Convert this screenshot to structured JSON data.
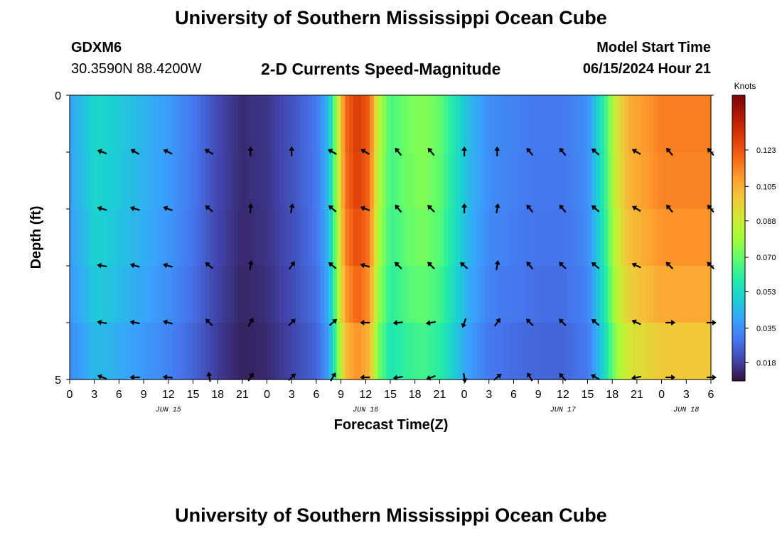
{
  "header": {
    "title": "University of Southern Mississippi Ocean Cube",
    "station": "GDXM6",
    "coords": "30.3590N  88.4200W",
    "subtitle": "2-D Currents Speed-Magnitude",
    "model_start_label": "Model Start Time",
    "model_start_value": "06/15/2024 Hour 21"
  },
  "footer": {
    "title": "University of Southern Mississippi Ocean Cube"
  },
  "colors": {
    "colormap": [
      "#30123b",
      "#4145ab",
      "#4675ed",
      "#39a2fc",
      "#1bcfd4",
      "#24eca6",
      "#61fc6c",
      "#a4fc3b",
      "#d1e834",
      "#f3c63a",
      "#fe9b2d",
      "#f36315",
      "#d93806",
      "#b11901",
      "#7a0402"
    ]
  },
  "chart_data": {
    "type": "heatmap",
    "title": "2-D Currents Speed-Magnitude",
    "xlabel": "Forecast Time(Z)",
    "ylabel": "Depth (ft)",
    "x_range": [
      0,
      78
    ],
    "y_range": [
      0,
      5
    ],
    "x_ticks": [
      0,
      3,
      6,
      9,
      12,
      15,
      18,
      21,
      24,
      27,
      30,
      33,
      36,
      39,
      42,
      45,
      48,
      51,
      54,
      57,
      60,
      63,
      66,
      69,
      72,
      75,
      78
    ],
    "x_tick_labels": [
      "0",
      "3",
      "6",
      "9",
      "12",
      "15",
      "18",
      "21",
      "0",
      "3",
      "6",
      "9",
      "12",
      "15",
      "18",
      "21",
      "0",
      "3",
      "6",
      "9",
      "12",
      "15",
      "18",
      "21",
      "0",
      "3",
      "6"
    ],
    "y_tick_labels": [
      "0",
      "5"
    ],
    "date_labels": [
      {
        "x": 12,
        "label": "JUN 15"
      },
      {
        "x": 36,
        "label": "JUN 16"
      },
      {
        "x": 60,
        "label": "JUN 17"
      },
      {
        "x": 75,
        "label": "JUN 18"
      }
    ],
    "colorbar": {
      "label": "Knots",
      "min": 0.009,
      "max": 0.15,
      "ticks": [
        0.018,
        0.035,
        0.053,
        0.07,
        0.088,
        0.105,
        0.123
      ],
      "tick_labels": [
        "0.018",
        "0.035",
        "0.053",
        "0.070",
        "0.088",
        "0.105",
        "0.123"
      ]
    },
    "speed_profile": [
      {
        "x": 0,
        "v": 0.04
      },
      {
        "x": 1.5,
        "v": 0.045
      },
      {
        "x": 3,
        "v": 0.052
      },
      {
        "x": 5,
        "v": 0.05
      },
      {
        "x": 8,
        "v": 0.045
      },
      {
        "x": 12,
        "v": 0.038
      },
      {
        "x": 15,
        "v": 0.03
      },
      {
        "x": 18,
        "v": 0.02
      },
      {
        "x": 21,
        "v": 0.014
      },
      {
        "x": 24,
        "v": 0.016
      },
      {
        "x": 27,
        "v": 0.022
      },
      {
        "x": 30,
        "v": 0.03
      },
      {
        "x": 31.5,
        "v": 0.045
      },
      {
        "x": 32.5,
        "v": 0.08
      },
      {
        "x": 33.5,
        "v": 0.118
      },
      {
        "x": 35,
        "v": 0.13
      },
      {
        "x": 36.5,
        "v": 0.12
      },
      {
        "x": 37.5,
        "v": 0.085
      },
      {
        "x": 39,
        "v": 0.065
      },
      {
        "x": 41,
        "v": 0.072
      },
      {
        "x": 43,
        "v": 0.075
      },
      {
        "x": 45,
        "v": 0.07
      },
      {
        "x": 47,
        "v": 0.055
      },
      {
        "x": 48.5,
        "v": 0.045
      },
      {
        "x": 51,
        "v": 0.035
      },
      {
        "x": 54,
        "v": 0.032
      },
      {
        "x": 57,
        "v": 0.03
      },
      {
        "x": 60,
        "v": 0.03
      },
      {
        "x": 63,
        "v": 0.035
      },
      {
        "x": 65,
        "v": 0.06
      },
      {
        "x": 66.5,
        "v": 0.09
      },
      {
        "x": 68,
        "v": 0.105
      },
      {
        "x": 72,
        "v": 0.115
      },
      {
        "x": 76,
        "v": 0.115
      },
      {
        "x": 78,
        "v": 0.115
      }
    ],
    "depth_factor": [
      1.0,
      1.0,
      0.98,
      0.95,
      0.9,
      0.82
    ],
    "vector_rows": [
      0.2,
      0.4,
      0.6,
      0.8,
      1.0
    ],
    "vector_times": [
      4,
      8,
      12,
      17,
      22,
      27,
      32,
      36,
      40,
      44,
      48,
      52,
      56,
      60,
      64,
      69,
      73,
      78
    ],
    "vector_angles_deg": [
      [
        160,
        150,
        155,
        150,
        90,
        90,
        150,
        150,
        130,
        130,
        90,
        90,
        130,
        130,
        140,
        150,
        130,
        130
      ],
      [
        165,
        165,
        160,
        140,
        85,
        80,
        140,
        160,
        130,
        135,
        90,
        80,
        130,
        130,
        140,
        150,
        130,
        130
      ],
      [
        170,
        165,
        165,
        140,
        80,
        55,
        140,
        165,
        135,
        135,
        140,
        80,
        130,
        135,
        140,
        155,
        135,
        135
      ],
      [
        170,
        170,
        165,
        135,
        60,
        45,
        40,
        180,
        185,
        190,
        250,
        55,
        135,
        135,
        140,
        155,
        0,
        0
      ],
      [
        160,
        180,
        175,
        100,
        60,
        45,
        60,
        180,
        190,
        200,
        280,
        40,
        120,
        130,
        150,
        190,
        0,
        0
      ]
    ]
  }
}
